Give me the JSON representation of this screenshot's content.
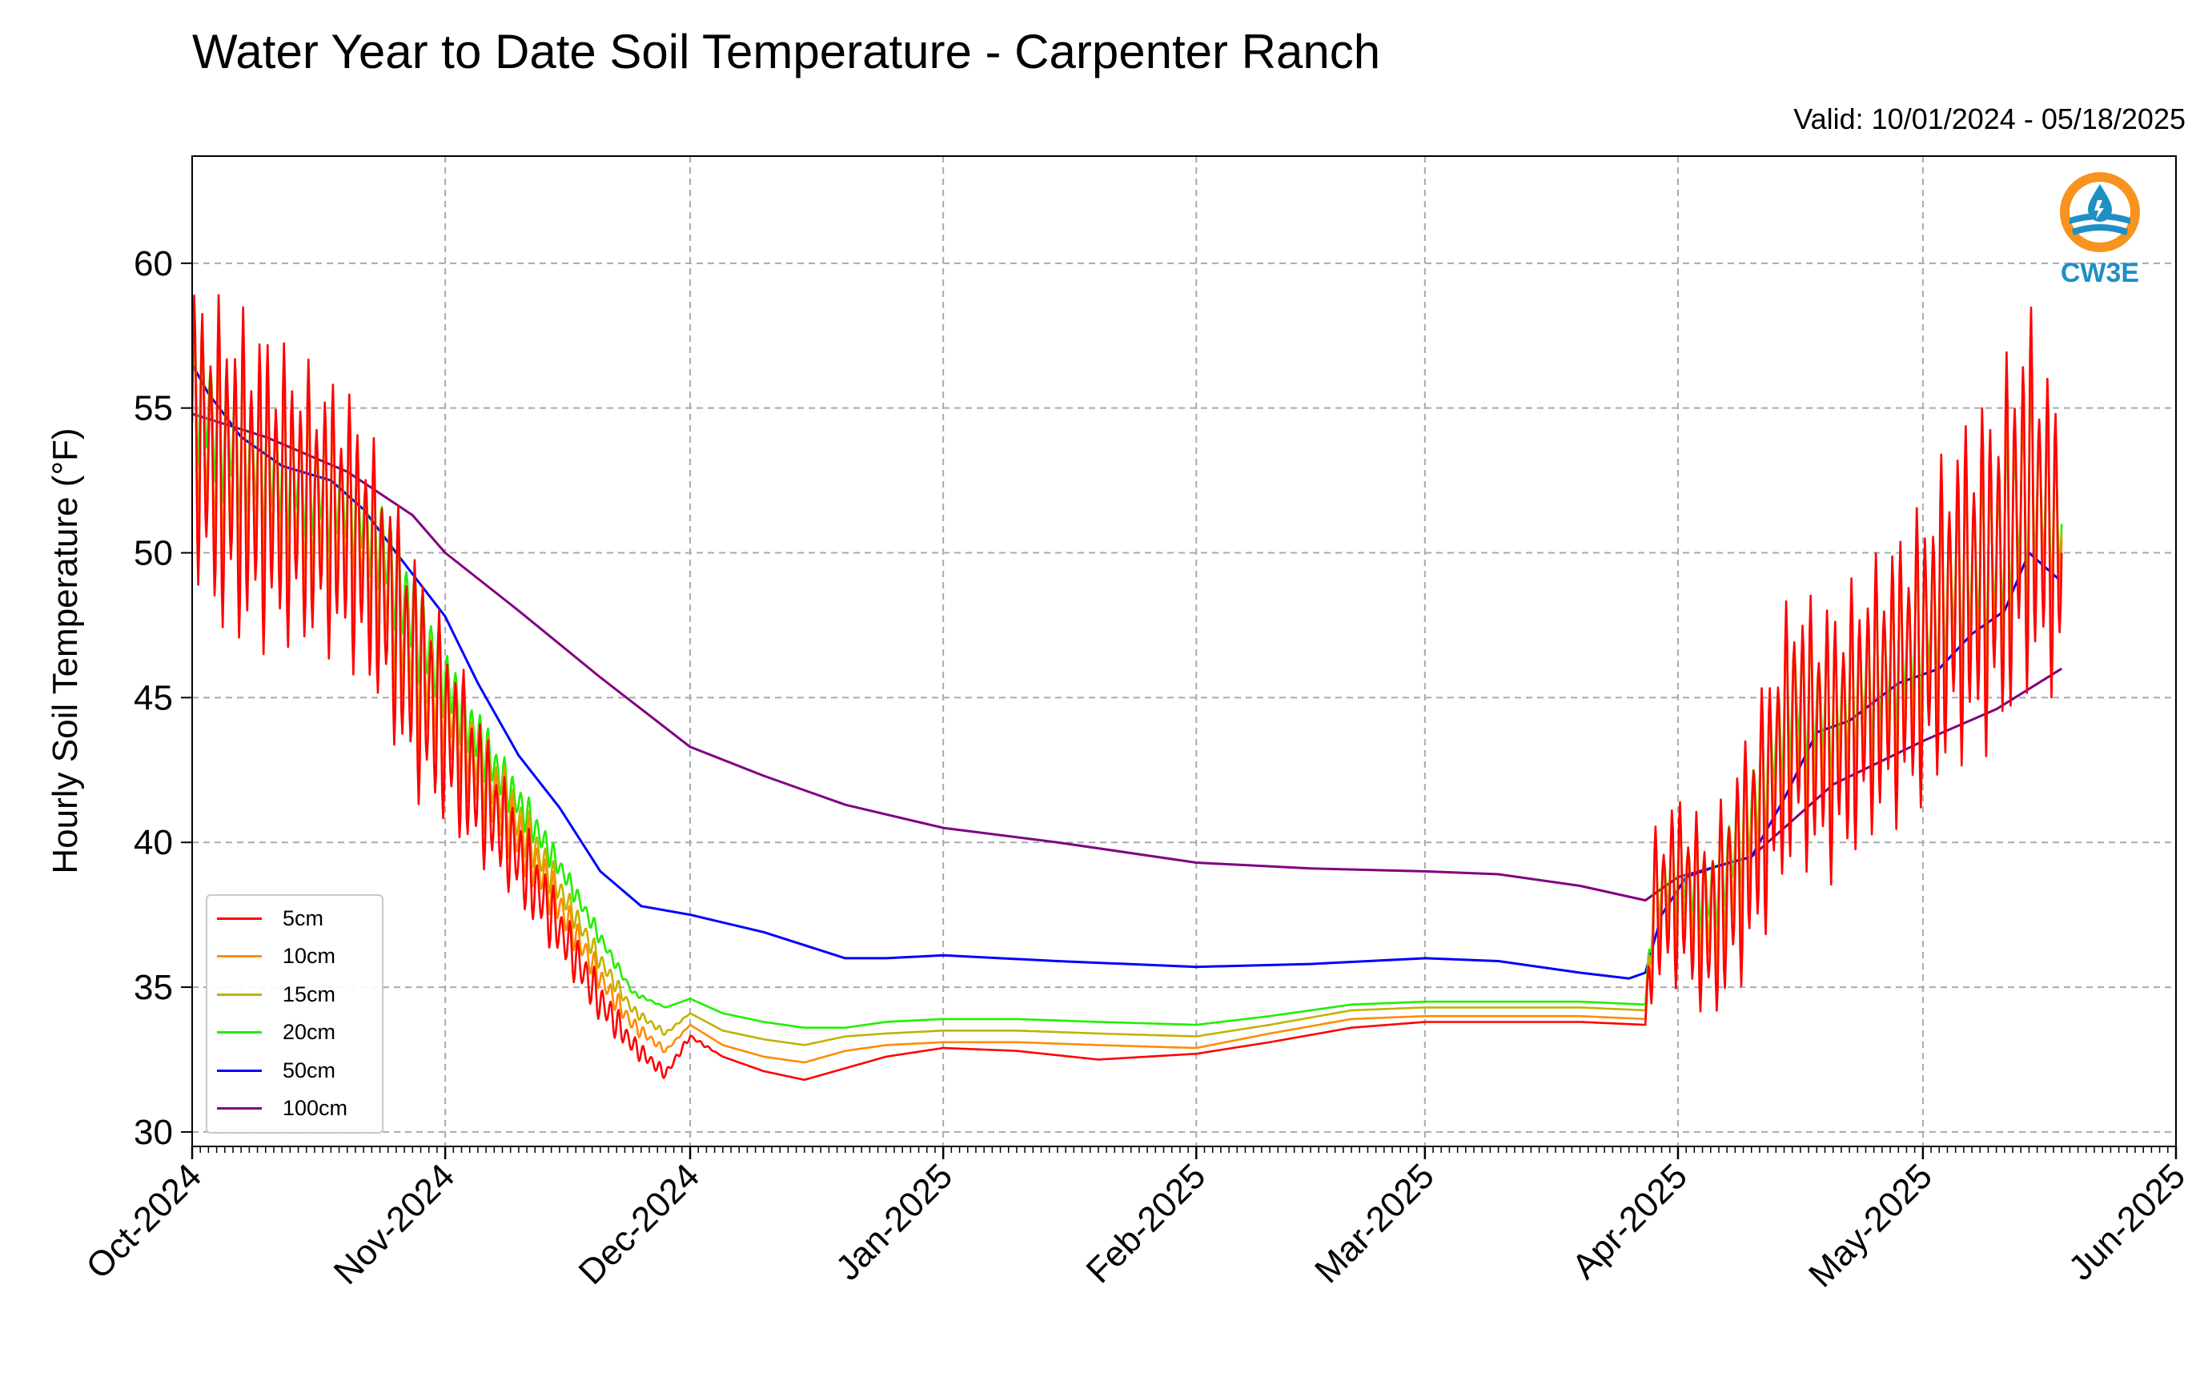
{
  "chart_data": {
    "type": "line",
    "title": "Water Year to Date Soil Temperature - Carpenter Ranch",
    "subtitle": "Valid: 10/01/2024 - 05/18/2025",
    "ylabel": "Hourly Soil Temperature (°F)",
    "xlabel": "",
    "ylim": [
      29.5,
      63.7
    ],
    "xlim": [
      "2024-10-01",
      "2025-06-01"
    ],
    "y_ticks": [
      30,
      35,
      40,
      45,
      50,
      55,
      60
    ],
    "x_ticks": [
      "Oct-2024",
      "Nov-2024",
      "Dec-2024",
      "Jan-2025",
      "Feb-2025",
      "Mar-2025",
      "Apr-2025",
      "May-2025",
      "Jun-2025"
    ],
    "x_tick_dates": [
      "2024-10-01",
      "2024-11-01",
      "2024-12-01",
      "2025-01-01",
      "2025-02-01",
      "2025-03-01",
      "2025-04-01",
      "2025-05-01",
      "2025-06-01"
    ],
    "grid": true,
    "legend_position": "lower-left",
    "logo_text": "CW3E",
    "series": [
      {
        "name": "5cm",
        "color": "#ff0000",
        "x": [
          "2024-10-01",
          "2024-10-04",
          "2024-10-08",
          "2024-10-12",
          "2024-10-16",
          "2024-10-20",
          "2024-10-24",
          "2024-10-28",
          "2024-11-01",
          "2024-11-04",
          "2024-11-08",
          "2024-11-12",
          "2024-11-16",
          "2024-11-20",
          "2024-11-24",
          "2024-11-28",
          "2024-12-01",
          "2024-12-05",
          "2024-12-10",
          "2024-12-15",
          "2024-12-20",
          "2024-12-25",
          "2025-01-01",
          "2025-01-10",
          "2025-01-20",
          "2025-02-01",
          "2025-02-10",
          "2025-02-20",
          "2025-03-01",
          "2025-03-10",
          "2025-03-20",
          "2025-03-28",
          "2025-03-29",
          "2025-04-01",
          "2025-04-05",
          "2025-04-10",
          "2025-04-15",
          "2025-04-20",
          "2025-04-25",
          "2025-05-01",
          "2025-05-05",
          "2025-05-10",
          "2025-05-14",
          "2025-05-18"
        ],
        "values": [
          54.5,
          53.0,
          52.5,
          52.0,
          51.5,
          51.0,
          49.0,
          46.0,
          44.0,
          42.5,
          40.5,
          38.5,
          36.5,
          34.5,
          33.0,
          32.0,
          33.3,
          32.6,
          32.1,
          31.8,
          32.2,
          32.6,
          32.9,
          32.8,
          32.5,
          32.7,
          33.1,
          33.6,
          33.8,
          33.8,
          33.8,
          33.7,
          37.5,
          38.5,
          37.0,
          40.0,
          44.0,
          43.5,
          45.0,
          46.5,
          48.5,
          49.5,
          52.0,
          50.0
        ],
        "amplitude": [
          5.0,
          6.0,
          6.0,
          5.5,
          5.0,
          5.0,
          4.5,
          4.5,
          3.5,
          3.0,
          2.0,
          1.5,
          1.0,
          0.8,
          0.4,
          0.2,
          0.1,
          0,
          0,
          0,
          0,
          0,
          0,
          0,
          0,
          0,
          0,
          0,
          0,
          0,
          0,
          0,
          3.0,
          3.5,
          3.5,
          4.5,
          5.0,
          5.0,
          5.0,
          5.5,
          6.0,
          6.5,
          7.0,
          5.0
        ]
      },
      {
        "name": "10cm",
        "color": "#ff8c00",
        "x": [
          "2024-10-01",
          "2024-10-04",
          "2024-10-08",
          "2024-10-12",
          "2024-10-16",
          "2024-10-20",
          "2024-10-24",
          "2024-10-28",
          "2024-11-01",
          "2024-11-04",
          "2024-11-08",
          "2024-11-12",
          "2024-11-16",
          "2024-11-20",
          "2024-11-24",
          "2024-11-28",
          "2024-12-01",
          "2024-12-05",
          "2024-12-10",
          "2024-12-15",
          "2024-12-20",
          "2024-12-25",
          "2025-01-01",
          "2025-01-10",
          "2025-01-20",
          "2025-02-01",
          "2025-02-10",
          "2025-02-20",
          "2025-03-01",
          "2025-03-10",
          "2025-03-20",
          "2025-03-28",
          "2025-03-29",
          "2025-04-01",
          "2025-04-05",
          "2025-04-10",
          "2025-04-15",
          "2025-04-20",
          "2025-04-25",
          "2025-05-01",
          "2025-05-05",
          "2025-05-10",
          "2025-05-14",
          "2025-05-18"
        ],
        "values": [
          54.8,
          53.3,
          52.8,
          52.3,
          51.8,
          51.3,
          49.5,
          46.5,
          44.5,
          43.0,
          41.2,
          39.3,
          37.3,
          35.3,
          33.7,
          32.8,
          33.7,
          33.0,
          32.6,
          32.4,
          32.8,
          33.0,
          33.1,
          33.1,
          33.0,
          32.9,
          33.4,
          33.9,
          34.0,
          34.0,
          34.0,
          33.9,
          37.7,
          38.7,
          37.5,
          40.5,
          44.5,
          44.0,
          45.3,
          46.8,
          48.8,
          49.7,
          52.0,
          50.5
        ],
        "amplitude": [
          4.0,
          4.5,
          4.5,
          4.0,
          3.8,
          3.8,
          3.5,
          3.3,
          2.6,
          2.2,
          1.5,
          1.1,
          0.7,
          0.5,
          0.3,
          0.1,
          0,
          0,
          0,
          0,
          0,
          0,
          0,
          0,
          0,
          0,
          0,
          0,
          0,
          0,
          0,
          0,
          2.3,
          2.7,
          2.7,
          3.5,
          4.0,
          4.0,
          4.0,
          4.3,
          4.6,
          5.0,
          5.5,
          3.8
        ]
      },
      {
        "name": "15cm",
        "color": "#c2b200",
        "x": [
          "2024-10-01",
          "2024-10-04",
          "2024-10-08",
          "2024-10-12",
          "2024-10-16",
          "2024-10-20",
          "2024-10-24",
          "2024-10-28",
          "2024-11-01",
          "2024-11-04",
          "2024-11-08",
          "2024-11-12",
          "2024-11-16",
          "2024-11-20",
          "2024-11-24",
          "2024-11-28",
          "2024-12-01",
          "2024-12-05",
          "2024-12-10",
          "2024-12-15",
          "2024-12-20",
          "2024-12-25",
          "2025-01-01",
          "2025-01-10",
          "2025-01-20",
          "2025-02-01",
          "2025-02-10",
          "2025-02-20",
          "2025-03-01",
          "2025-03-10",
          "2025-03-20",
          "2025-03-28",
          "2025-03-29",
          "2025-04-01",
          "2025-04-05",
          "2025-04-10",
          "2025-04-15",
          "2025-04-20",
          "2025-04-25",
          "2025-05-01",
          "2025-05-05",
          "2025-05-10",
          "2025-05-14",
          "2025-05-18"
        ],
        "values": [
          55.0,
          53.5,
          53.0,
          52.5,
          52.0,
          51.5,
          49.8,
          47.0,
          45.0,
          43.4,
          41.6,
          39.8,
          37.9,
          35.9,
          34.2,
          33.4,
          34.1,
          33.5,
          33.2,
          33.0,
          33.3,
          33.4,
          33.5,
          33.5,
          33.4,
          33.3,
          33.7,
          34.2,
          34.3,
          34.3,
          34.3,
          34.2,
          38.0,
          39.0,
          37.8,
          40.8,
          44.8,
          44.3,
          45.5,
          47.0,
          49.0,
          49.9,
          52.3,
          50.7
        ],
        "amplitude": [
          3.2,
          3.6,
          3.6,
          3.2,
          3.0,
          3.0,
          2.8,
          2.6,
          2.0,
          1.7,
          1.2,
          0.9,
          0.5,
          0.4,
          0.2,
          0.1,
          0,
          0,
          0,
          0,
          0,
          0,
          0,
          0,
          0,
          0,
          0,
          0,
          0,
          0,
          0,
          0,
          1.8,
          2.1,
          2.1,
          2.8,
          3.2,
          3.2,
          3.2,
          3.4,
          3.7,
          4.0,
          4.5,
          3.0
        ]
      },
      {
        "name": "20cm",
        "color": "#22ee00",
        "x": [
          "2024-10-01",
          "2024-10-04",
          "2024-10-08",
          "2024-10-12",
          "2024-10-16",
          "2024-10-20",
          "2024-10-24",
          "2024-10-28",
          "2024-11-01",
          "2024-11-04",
          "2024-11-08",
          "2024-11-12",
          "2024-11-16",
          "2024-11-20",
          "2024-11-24",
          "2024-11-28",
          "2024-12-01",
          "2024-12-05",
          "2024-12-10",
          "2024-12-15",
          "2024-12-20",
          "2024-12-25",
          "2025-01-01",
          "2025-01-10",
          "2025-01-20",
          "2025-02-01",
          "2025-02-10",
          "2025-02-20",
          "2025-03-01",
          "2025-03-10",
          "2025-03-20",
          "2025-03-28",
          "2025-03-29",
          "2025-04-01",
          "2025-04-05",
          "2025-04-10",
          "2025-04-15",
          "2025-04-20",
          "2025-04-25",
          "2025-05-01",
          "2025-05-05",
          "2025-05-10",
          "2025-05-14",
          "2025-05-18"
        ],
        "values": [
          56.0,
          54.5,
          53.5,
          53.0,
          52.5,
          52.0,
          50.5,
          47.8,
          45.6,
          44.0,
          42.2,
          40.5,
          38.7,
          36.7,
          34.8,
          34.3,
          34.6,
          34.1,
          33.8,
          33.6,
          33.6,
          33.8,
          33.9,
          33.9,
          33.8,
          33.7,
          34.0,
          34.4,
          34.5,
          34.5,
          34.5,
          34.4,
          38.2,
          39.2,
          38.2,
          41.2,
          45.2,
          44.6,
          45.8,
          47.3,
          49.3,
          50.0,
          52.5,
          51.0
        ],
        "amplitude": [
          2.6,
          2.8,
          2.8,
          2.5,
          2.3,
          2.3,
          2.1,
          2.0,
          1.5,
          1.3,
          0.9,
          0.7,
          0.4,
          0.3,
          0.1,
          0,
          0,
          0,
          0,
          0,
          0,
          0,
          0,
          0,
          0,
          0,
          0,
          0,
          0,
          0,
          0,
          0,
          1.4,
          1.6,
          1.6,
          2.2,
          2.5,
          2.5,
          2.5,
          2.7,
          2.9,
          3.2,
          3.6,
          2.4
        ]
      },
      {
        "name": "50cm",
        "color": "#0000ff",
        "x": [
          "2024-10-01",
          "2024-10-03",
          "2024-10-07",
          "2024-10-12",
          "2024-10-18",
          "2024-10-22",
          "2024-10-26",
          "2024-11-01",
          "2024-11-05",
          "2024-11-10",
          "2024-11-15",
          "2024-11-20",
          "2024-11-25",
          "2024-12-01",
          "2024-12-10",
          "2024-12-20",
          "2024-12-25",
          "2025-01-01",
          "2025-01-15",
          "2025-02-01",
          "2025-02-15",
          "2025-03-01",
          "2025-03-10",
          "2025-03-20",
          "2025-03-26",
          "2025-03-28",
          "2025-03-30",
          "2025-04-02",
          "2025-04-06",
          "2025-04-10",
          "2025-04-14",
          "2025-04-18",
          "2025-04-22",
          "2025-04-28",
          "2025-05-03",
          "2025-05-07",
          "2025-05-11",
          "2025-05-14",
          "2025-05-18"
        ],
        "values": [
          56.5,
          55.5,
          54.0,
          53.0,
          52.5,
          51.5,
          50.0,
          47.8,
          45.5,
          43.0,
          41.2,
          39.0,
          37.8,
          37.5,
          36.9,
          36.0,
          36.0,
          36.1,
          35.9,
          35.7,
          35.8,
          36.0,
          35.9,
          35.5,
          35.3,
          35.5,
          37.5,
          38.8,
          39.2,
          39.5,
          41.5,
          43.8,
          44.2,
          45.5,
          46.0,
          47.2,
          48.0,
          50.0,
          49.0
        ]
      },
      {
        "name": "100cm",
        "color": "#800080",
        "x": [
          "2024-10-01",
          "2024-10-10",
          "2024-10-20",
          "2024-10-28",
          "2024-11-01",
          "2024-11-10",
          "2024-11-20",
          "2024-12-01",
          "2024-12-10",
          "2024-12-20",
          "2025-01-01",
          "2025-01-15",
          "2025-02-01",
          "2025-02-15",
          "2025-03-01",
          "2025-03-10",
          "2025-03-20",
          "2025-03-28",
          "2025-04-01",
          "2025-04-10",
          "2025-04-20",
          "2025-05-01",
          "2025-05-10",
          "2025-05-18"
        ],
        "values": [
          54.8,
          54.0,
          52.8,
          51.3,
          50.0,
          48.0,
          45.7,
          43.3,
          42.3,
          41.3,
          40.5,
          40.0,
          39.3,
          39.1,
          39.0,
          38.9,
          38.5,
          38.0,
          38.8,
          39.5,
          42.0,
          43.5,
          44.6,
          46.0
        ]
      }
    ]
  }
}
